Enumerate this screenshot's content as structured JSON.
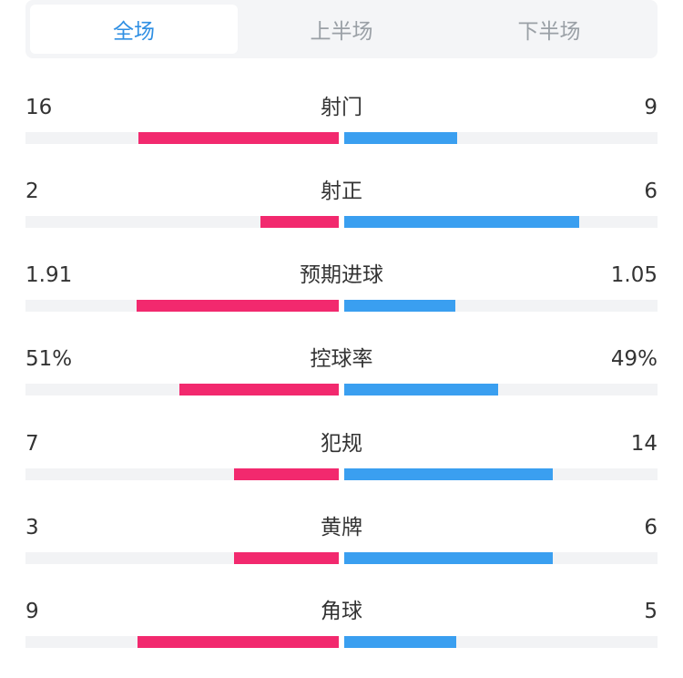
{
  "tabs": [
    {
      "label": "全场",
      "active": true
    },
    {
      "label": "上半场",
      "active": false
    },
    {
      "label": "下半场",
      "active": false
    }
  ],
  "colors": {
    "home": "#f2296e",
    "away": "#3a9ff0",
    "tab_active": "#2f8fe3"
  },
  "stats": [
    {
      "label": "射门",
      "home": "16",
      "away": "9",
      "home_fraction": 0.64,
      "away_fraction": 0.36
    },
    {
      "label": "射正",
      "home": "2",
      "away": "6",
      "home_fraction": 0.25,
      "away_fraction": 0.75
    },
    {
      "label": "预期进球",
      "home": "1.91",
      "away": "1.05",
      "home_fraction": 0.645,
      "away_fraction": 0.355
    },
    {
      "label": "控球率",
      "home": "51%",
      "away": "49%",
      "home_fraction": 0.51,
      "away_fraction": 0.49
    },
    {
      "label": "犯规",
      "home": "7",
      "away": "14",
      "home_fraction": 0.333,
      "away_fraction": 0.667
    },
    {
      "label": "黄牌",
      "home": "3",
      "away": "6",
      "home_fraction": 0.333,
      "away_fraction": 0.667
    },
    {
      "label": "角球",
      "home": "9",
      "away": "5",
      "home_fraction": 0.643,
      "away_fraction": 0.357
    }
  ]
}
